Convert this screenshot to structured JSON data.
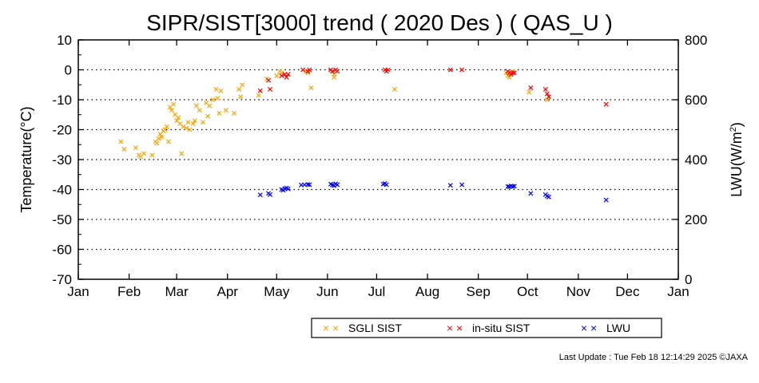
{
  "chart_data": {
    "type": "scatter",
    "title": "SIPR/SIST[3000] trend ( 2020 Des ) ( QAS_U )",
    "ylabel": "Temperature(°C)",
    "y2label": "LWU(W/m²)",
    "ylim": [
      -70,
      10
    ],
    "y2lim": [
      0,
      800
    ],
    "y_ticks": [
      "10",
      "0",
      "-10",
      "-20",
      "-30",
      "-40",
      "-50",
      "-60",
      "-70"
    ],
    "y2_ticks": [
      "800",
      "600",
      "400",
      "200",
      "0"
    ],
    "x_ticks": [
      "Jan",
      "Feb",
      "Mar",
      "Apr",
      "May",
      "Jun",
      "Jul",
      "Aug",
      "Sep",
      "Oct",
      "Nov",
      "Dec",
      "Jan"
    ],
    "xlim_days": [
      0,
      366
    ],
    "grid": "horizontal dotted",
    "legend_position": "bottom",
    "series": [
      {
        "name": "SGLI SIST",
        "color": "#ffa500",
        "axis": "left",
        "x": [
          26,
          28,
          35,
          37,
          38,
          40,
          45,
          47,
          48,
          49,
          50,
          51,
          52,
          53,
          54,
          55,
          56,
          57,
          58,
          59,
          60,
          61,
          62,
          63,
          64,
          66,
          67,
          68,
          70,
          71,
          72,
          74,
          76,
          78,
          79,
          80,
          82,
          84,
          85,
          86,
          87,
          90,
          95,
          98,
          99,
          100,
          110,
          115,
          121,
          123,
          124,
          139,
          140,
          142,
          155,
          156,
          156,
          193,
          261,
          262,
          263,
          264,
          265,
          275,
          286,
          287
        ],
        "y": [
          -24,
          -26.5,
          -26,
          -28.5,
          -29,
          -28,
          -28.5,
          -24,
          -24.5,
          -23,
          -21.5,
          -22.5,
          -20.5,
          -20,
          -19,
          -24,
          -12.5,
          -13.5,
          -11.5,
          -15,
          -17,
          -16,
          -18,
          -28,
          -19,
          -19.5,
          -17.5,
          -20,
          -18,
          -17,
          -12,
          -13.5,
          -17.5,
          -11,
          -15.5,
          -12,
          -10,
          -6.5,
          -9.5,
          -14.5,
          -7,
          -13.5,
          -14.5,
          -6.5,
          -9,
          -5,
          -8.5,
          -3,
          -2,
          -0.5,
          -1,
          -0.5,
          -1,
          -6,
          -0.5,
          -1.5,
          -2.5,
          -6.5,
          -1,
          -2,
          -2.5,
          -1,
          -0.5,
          -7.5,
          -10,
          -9
        ]
      },
      {
        "name": "in-situ SIST",
        "color": "#ff0000",
        "axis": "left",
        "x": [
          111,
          116,
          117,
          124,
          126,
          127,
          128,
          137,
          140,
          141,
          154,
          155,
          157,
          158,
          187,
          188,
          189,
          227,
          234,
          262,
          263,
          264,
          265,
          266,
          276,
          285,
          286,
          287,
          322
        ],
        "y": [
          -7,
          -3.5,
          -6.5,
          -2,
          -1.5,
          -2.5,
          -1.5,
          0,
          -0.5,
          0,
          0,
          -0.5,
          0,
          -0.5,
          0,
          -0.5,
          0,
          0,
          0,
          -0.5,
          -1,
          -1.5,
          -1,
          -1,
          -6,
          -6.5,
          -8,
          -9,
          -11.5
        ]
      },
      {
        "name": "LWU",
        "color": "#0000ff",
        "axis": "right",
        "x": [
          111,
          116,
          117,
          124,
          125,
          126,
          127,
          128,
          136,
          138,
          140,
          141,
          154,
          155,
          156,
          157,
          158,
          186,
          187,
          188,
          227,
          234,
          262,
          263,
          264,
          265,
          266,
          276,
          285,
          286,
          287,
          322
        ],
        "y": [
          282,
          287,
          283,
          300,
          298,
          303,
          305,
          302,
          315,
          316,
          317,
          316,
          318,
          315,
          313,
          319,
          316,
          318,
          320,
          316,
          314,
          316,
          310,
          309,
          312,
          310,
          311,
          287,
          283,
          278,
          275,
          265
        ]
      }
    ]
  },
  "legend": {
    "items": [
      {
        "marker": "× ×",
        "label": "SGLI SIST",
        "color": "#ffa500"
      },
      {
        "marker": "× ×",
        "label": "in-situ SIST",
        "color": "#ff0000"
      },
      {
        "marker": "× ×",
        "label": "LWU",
        "color": "#0000ff"
      }
    ]
  },
  "footer": {
    "update_text": "Last Update : Tue Feb 18 12:14:29 2025  ©JAXA"
  }
}
